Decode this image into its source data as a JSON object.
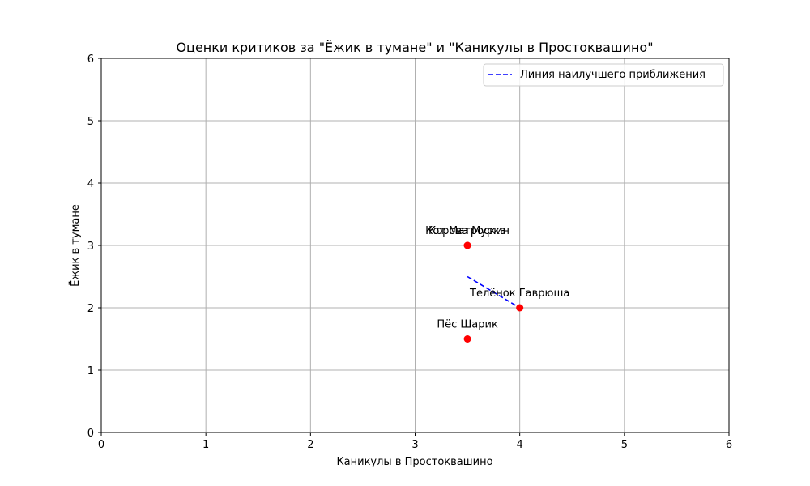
{
  "chart_data": {
    "type": "scatter",
    "title": "Оценки критиков за \"Ёжик в тумане\" и \"Каникулы в Простоквашино\"",
    "xlabel": "Каникулы в Простоквашино",
    "ylabel": "Ёжик в тумане",
    "xlim": [
      0,
      6
    ],
    "ylim": [
      0,
      6
    ],
    "xticks": [
      "0",
      "1",
      "2",
      "3",
      "4",
      "5",
      "6"
    ],
    "yticks": [
      "0",
      "1",
      "2",
      "3",
      "4",
      "5",
      "6"
    ],
    "grid": true,
    "legend_position": "top-right",
    "point_color": "#ff0000",
    "line_color": "#0000ff",
    "points": [
      {
        "label": "Кот Матроскин",
        "x": 3.5,
        "y": 3.0
      },
      {
        "label": "Корова Мурка",
        "x": 3.5,
        "y": 3.0
      },
      {
        "label": "Телёнок Гаврюша",
        "x": 4.0,
        "y": 2.0
      },
      {
        "label": "Пёс Шарик",
        "x": 3.5,
        "y": 1.5
      }
    ],
    "fit_line": {
      "name": "Линия наилучшего приближения",
      "x": [
        3.5,
        4.0
      ],
      "y": [
        2.5,
        2.0
      ]
    }
  }
}
